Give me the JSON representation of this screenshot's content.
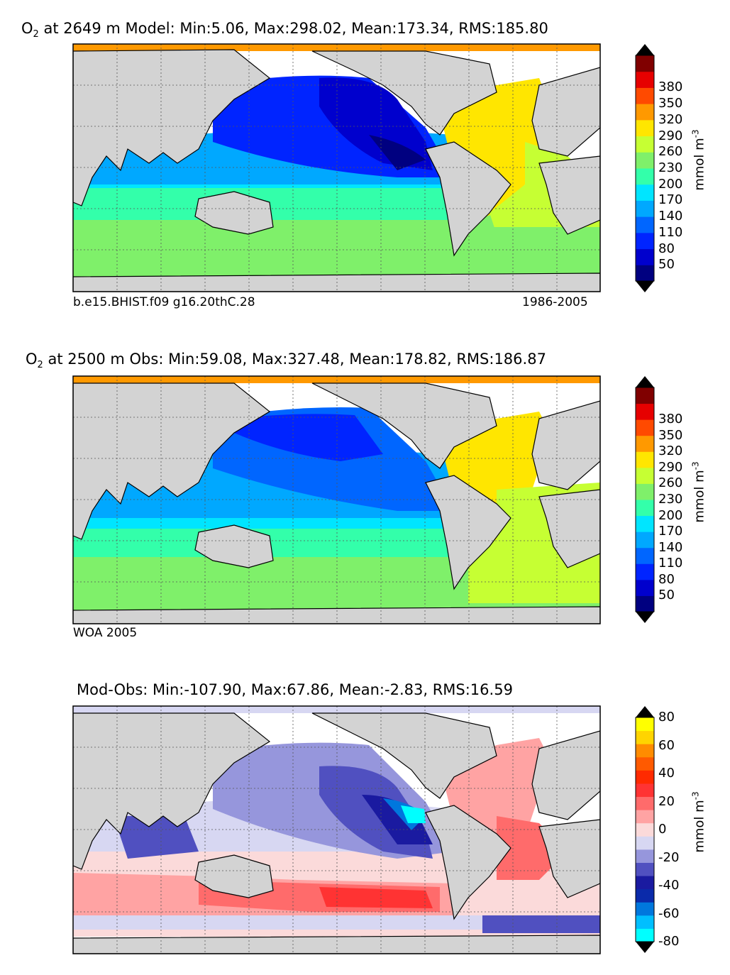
{
  "chart_data": [
    {
      "type": "heatmap",
      "panel": "model",
      "title": "at 2649 m Model: Min:5.06, Max:298.02, Mean:173.34, RMS:185.80",
      "title_prefix": "O",
      "title_subscript": "2",
      "left_caption": "b.e15.BHIST.f09 g16.20thC.28",
      "right_caption": "1986-2005",
      "variable": "O2",
      "depth_m": 2649,
      "stats": {
        "min": 5.06,
        "max": 298.02,
        "mean": 173.34,
        "rms": 185.8
      },
      "colorbar": {
        "label": "mmol m",
        "label_exponent": "-3",
        "levels": [
          50,
          80,
          110,
          140,
          170,
          200,
          230,
          260,
          290,
          320,
          350,
          380
        ],
        "tick_labels": [
          "50",
          "80",
          "110",
          "140",
          "170",
          "200",
          "230",
          "260",
          "290",
          "320",
          "350",
          "380"
        ],
        "under_color": "#000080",
        "over_color": "#800000",
        "colors": [
          "#000080",
          "#0000cd",
          "#0024ff",
          "#0066ff",
          "#00a8ff",
          "#00e5ff",
          "#33ffaa",
          "#7ff06a",
          "#c6ff33",
          "#ffe600",
          "#ff9900",
          "#ff4a00",
          "#e60000",
          "#800000"
        ],
        "extend": "both"
      }
    },
    {
      "type": "heatmap",
      "panel": "obs",
      "title": "at 2500 m Obs: Min:59.08, Max:327.48, Mean:178.82, RMS:186.87",
      "title_prefix": "O",
      "title_subscript": "2",
      "left_caption": "WOA 2005",
      "variable": "O2",
      "depth_m": 2500,
      "stats": {
        "min": 59.08,
        "max": 327.48,
        "mean": 178.82,
        "rms": 186.87
      },
      "colorbar": {
        "label": "mmol m",
        "label_exponent": "-3",
        "levels": [
          50,
          80,
          110,
          140,
          170,
          200,
          230,
          260,
          290,
          320,
          350,
          380
        ],
        "tick_labels": [
          "50",
          "80",
          "110",
          "140",
          "170",
          "200",
          "230",
          "260",
          "290",
          "320",
          "350",
          "380"
        ],
        "under_color": "#000080",
        "over_color": "#800000",
        "colors": [
          "#000080",
          "#0000cd",
          "#0024ff",
          "#0066ff",
          "#00a8ff",
          "#00e5ff",
          "#33ffaa",
          "#7ff06a",
          "#c6ff33",
          "#ffe600",
          "#ff9900",
          "#ff4a00",
          "#e60000",
          "#800000"
        ],
        "extend": "both"
      }
    },
    {
      "type": "heatmap",
      "panel": "diff",
      "title": "Mod-Obs: Min:-107.90, Max:67.86, Mean:-2.83, RMS:16.59",
      "stats": {
        "min": -107.9,
        "max": 67.86,
        "mean": -2.83,
        "rms": 16.59
      },
      "colorbar": {
        "label": "mmol m",
        "label_exponent": "-3",
        "levels": [
          -80,
          -70,
          -60,
          -50,
          -40,
          -30,
          -20,
          -10,
          0,
          10,
          20,
          30,
          40,
          50,
          60,
          70,
          80
        ],
        "tick_labels": [
          "-80",
          "-60",
          "-40",
          "-20",
          "0",
          "20",
          "40",
          "60",
          "80"
        ],
        "tick_values": [
          -80,
          -60,
          -40,
          -20,
          0,
          20,
          40,
          60,
          80
        ],
        "colors": [
          "#00ffff",
          "#00bfff",
          "#0077dd",
          "#0a2aaa",
          "#1a1aa0",
          "#5050c0",
          "#9696dc",
          "#d7d7f2",
          "#fbdada",
          "#ffa3a3",
          "#ff6b6b",
          "#ff3333",
          "#ff2a00",
          "#ff5a00",
          "#ff8c00",
          "#ffd400",
          "#ffff00"
        ],
        "under_color": "#00ffff",
        "over_color": "#ffff00",
        "extend": "both"
      }
    }
  ],
  "colors": {
    "land": "#d3d3d3",
    "missing": "#ffffff",
    "grid": "#555555",
    "coast": "#000000"
  }
}
